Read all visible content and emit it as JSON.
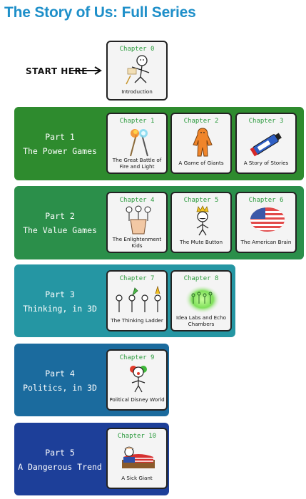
{
  "title": "The Story of Us: Full Series",
  "start_label": "START HERE",
  "intro": {
    "chapter": "Chapter 0",
    "name": "Introduction"
  },
  "parts": [
    {
      "part": "Part 1",
      "name": "The Power Games",
      "color": "#2e8b2e",
      "chapters": [
        {
          "chapter": "Chapter 1",
          "name": "The Great Battle of Fire and Light"
        },
        {
          "chapter": "Chapter 2",
          "name": "A Game of Giants"
        },
        {
          "chapter": "Chapter 3",
          "name": "A Story of Stories"
        }
      ]
    },
    {
      "part": "Part 2",
      "name": "The Value Games",
      "color": "#2b8f4a",
      "chapters": [
        {
          "chapter": "Chapter 4",
          "name": "The Enlightenment Kids"
        },
        {
          "chapter": "Chapter 5",
          "name": "The Mute Button"
        },
        {
          "chapter": "Chapter 6",
          "name": "The American Brain"
        }
      ]
    },
    {
      "part": "Part 3",
      "name": "Thinking, in 3D",
      "color": "#2596a3",
      "chapters": [
        {
          "chapter": "Chapter 7",
          "name": "The Thinking Ladder"
        },
        {
          "chapter": "Chapter 8",
          "name": "Idea Labs and Echo Chambers"
        }
      ]
    },
    {
      "part": "Part 4",
      "name": "Politics, in 3D",
      "color": "#1b6b9e",
      "chapters": [
        {
          "chapter": "Chapter 9",
          "name": "Political Disney World"
        }
      ]
    },
    {
      "part": "Part 5",
      "name": "A Dangerous Trend",
      "color": "#1d3f99",
      "chapters": [
        {
          "chapter": "Chapter 10",
          "name": "A Sick Giant"
        }
      ]
    }
  ]
}
